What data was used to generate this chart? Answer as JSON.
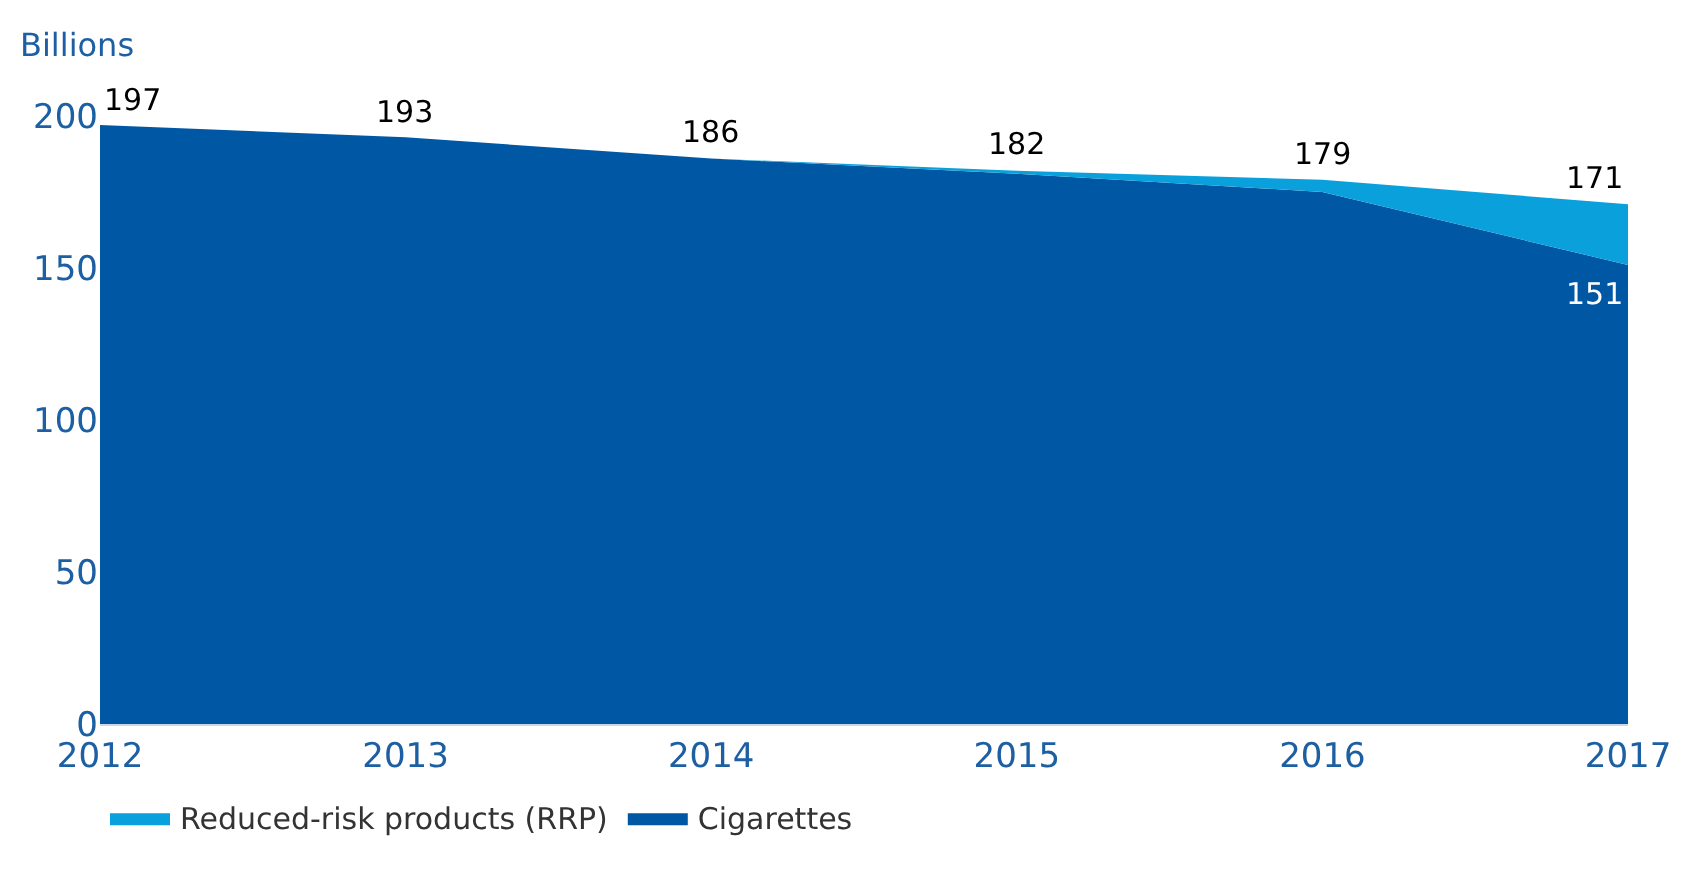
{
  "chart_data": {
    "type": "area",
    "ylabel": "Billions",
    "x": [
      2012,
      2013,
      2014,
      2015,
      2016,
      2017
    ],
    "xlim": [
      2012,
      2017
    ],
    "xticks": [
      2012,
      2013,
      2014,
      2015,
      2016,
      2017
    ],
    "ylim": [
      0,
      200
    ],
    "yticks": [
      0,
      50,
      100,
      150,
      200
    ],
    "stacked": true,
    "grid": false,
    "legend": "bottom left",
    "series": [
      {
        "name": "Cigarettes",
        "color": "#0057a4",
        "values": [
          197,
          193,
          186,
          181,
          175,
          151
        ],
        "value_labels": [
          null,
          null,
          null,
          null,
          null,
          "151"
        ]
      },
      {
        "name": "Reduced-risk products (RRP)",
        "color": "#0aa0dc",
        "values": [
          0,
          0,
          0,
          1,
          4,
          20
        ]
      }
    ],
    "totals": [
      "197",
      "193",
      "186",
      "182",
      "179",
      "171"
    ]
  }
}
